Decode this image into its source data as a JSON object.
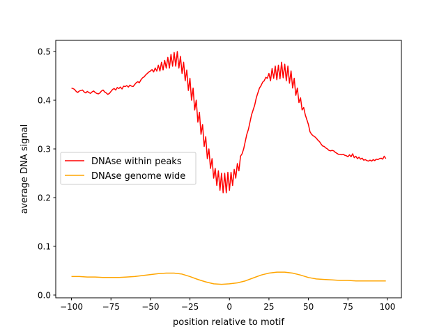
{
  "chart_data": {
    "type": "line",
    "title": "",
    "xlabel": "position relative to motif",
    "ylabel": "average DNA signal",
    "xlim": [
      -109.95,
      108.85
    ],
    "ylim": [
      -0.0057,
      0.5229
    ],
    "xticks": [
      -100,
      -75,
      -50,
      -25,
      0,
      25,
      50,
      75,
      100
    ],
    "xtick_labels": [
      "−100",
      "−75",
      "−50",
      "−25",
      "0",
      "25",
      "50",
      "75",
      "100"
    ],
    "yticks": [
      0.0,
      0.1,
      0.2,
      0.3,
      0.4,
      0.5
    ],
    "ytick_labels": [
      "0.0",
      "0.1",
      "0.2",
      "0.3",
      "0.4",
      "0.5"
    ],
    "grid": false,
    "legend_position": "center-left",
    "series": [
      {
        "name": "DNAse within peaks",
        "color": "#ff0000",
        "x_start": -100,
        "x_step": 1,
        "values": [
          0.425,
          0.424,
          0.422,
          0.418,
          0.416,
          0.419,
          0.42,
          0.421,
          0.417,
          0.415,
          0.418,
          0.416,
          0.414,
          0.417,
          0.419,
          0.416,
          0.414,
          0.413,
          0.415,
          0.419,
          0.421,
          0.417,
          0.415,
          0.412,
          0.414,
          0.418,
          0.422,
          0.424,
          0.421,
          0.426,
          0.424,
          0.427,
          0.423,
          0.429,
          0.428,
          0.43,
          0.427,
          0.431,
          0.429,
          0.428,
          0.432,
          0.436,
          0.438,
          0.436,
          0.442,
          0.446,
          0.448,
          0.452,
          0.455,
          0.458,
          0.46,
          0.463,
          0.458,
          0.466,
          0.46,
          0.472,
          0.46,
          0.478,
          0.462,
          0.482,
          0.466,
          0.488,
          0.466,
          0.494,
          0.47,
          0.498,
          0.47,
          0.5,
          0.466,
          0.49,
          0.455,
          0.478,
          0.44,
          0.462,
          0.42,
          0.445,
          0.4,
          0.425,
          0.38,
          0.4,
          0.355,
          0.375,
          0.33,
          0.35,
          0.305,
          0.325,
          0.28,
          0.3,
          0.26,
          0.28,
          0.24,
          0.26,
          0.225,
          0.255,
          0.215,
          0.25,
          0.21,
          0.25,
          0.21,
          0.252,
          0.215,
          0.252,
          0.225,
          0.258,
          0.24,
          0.27,
          0.255,
          0.285,
          0.29,
          0.3,
          0.315,
          0.33,
          0.34,
          0.355,
          0.37,
          0.38,
          0.39,
          0.405,
          0.415,
          0.425,
          0.43,
          0.437,
          0.44,
          0.447,
          0.445,
          0.455,
          0.44,
          0.465,
          0.445,
          0.47,
          0.442,
          0.472,
          0.444,
          0.478,
          0.446,
          0.474,
          0.44,
          0.47,
          0.435,
          0.46,
          0.425,
          0.445,
          0.41,
          0.425,
          0.395,
          0.405,
          0.38,
          0.385,
          0.37,
          0.36,
          0.35,
          0.335,
          0.33,
          0.327,
          0.325,
          0.322,
          0.318,
          0.315,
          0.31,
          0.306,
          0.305,
          0.302,
          0.3,
          0.297,
          0.296,
          0.297,
          0.296,
          0.293,
          0.291,
          0.289,
          0.289,
          0.288,
          0.289,
          0.287,
          0.286,
          0.284,
          0.288,
          0.284,
          0.29,
          0.282,
          0.285,
          0.28,
          0.283,
          0.279,
          0.281,
          0.277,
          0.278,
          0.276,
          0.275,
          0.277,
          0.275,
          0.278,
          0.276,
          0.279,
          0.278,
          0.28,
          0.281,
          0.279,
          0.285,
          0.28
        ]
      },
      {
        "name": "DNAse genome wide",
        "color": "#ffa500",
        "x": [
          -100,
          -95,
          -90,
          -85,
          -80,
          -75,
          -70,
          -65,
          -60,
          -55,
          -50,
          -45,
          -40,
          -35,
          -30,
          -25,
          -20,
          -15,
          -10,
          -5,
          0,
          5,
          10,
          15,
          20,
          25,
          30,
          35,
          40,
          45,
          50,
          55,
          60,
          65,
          70,
          75,
          80,
          85,
          90,
          95,
          99
        ],
        "values": [
          0.038,
          0.038,
          0.037,
          0.037,
          0.036,
          0.036,
          0.036,
          0.037,
          0.038,
          0.04,
          0.042,
          0.044,
          0.045,
          0.045,
          0.043,
          0.038,
          0.032,
          0.027,
          0.023,
          0.022,
          0.023,
          0.025,
          0.029,
          0.035,
          0.041,
          0.045,
          0.047,
          0.047,
          0.045,
          0.041,
          0.036,
          0.033,
          0.032,
          0.031,
          0.03,
          0.03,
          0.029,
          0.029,
          0.029,
          0.029,
          0.029
        ]
      }
    ]
  }
}
